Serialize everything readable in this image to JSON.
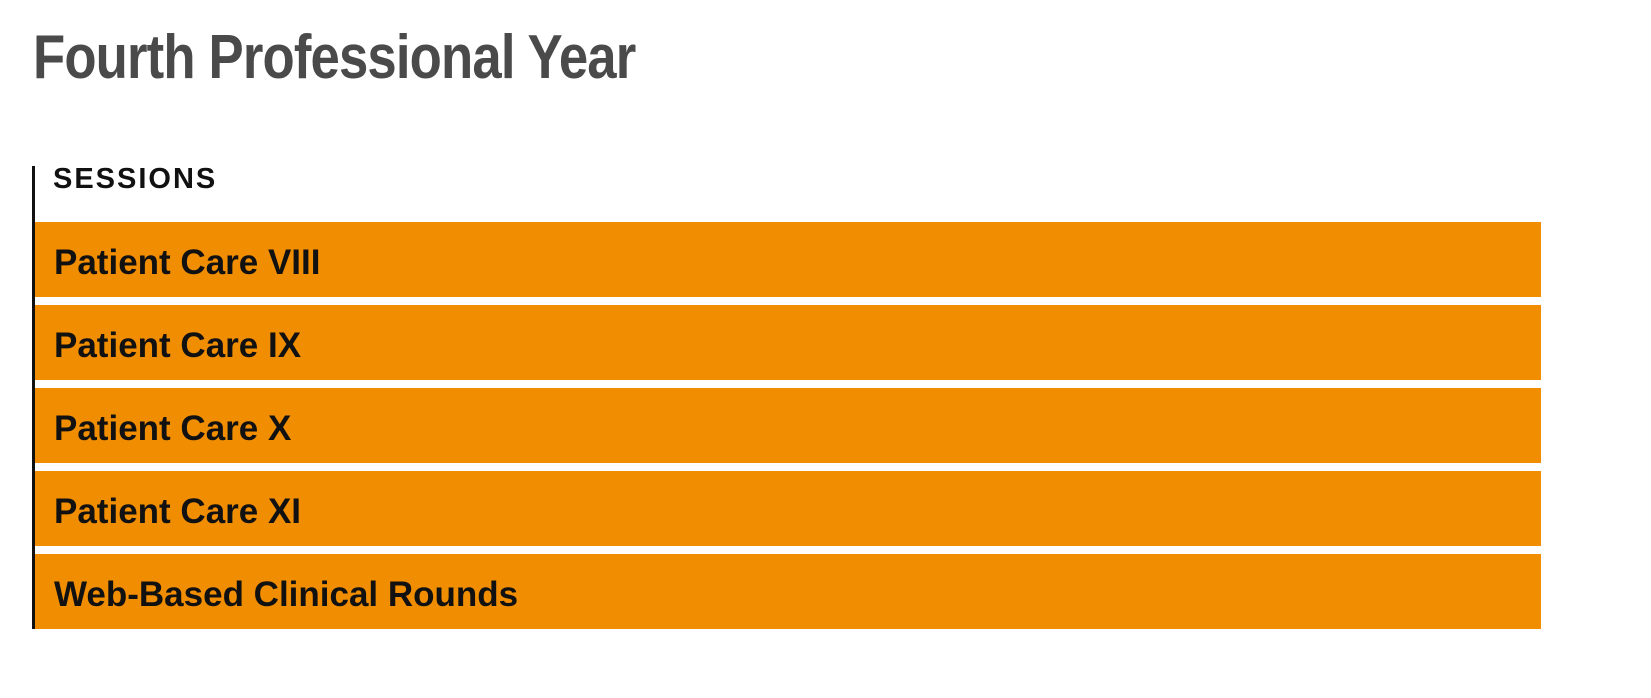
{
  "header": {
    "title": "Fourth Professional Year"
  },
  "section": {
    "label": "SESSIONS",
    "items": [
      "Patient Care VIII",
      "Patient Care IX",
      "Patient Care X",
      "Patient Care XI",
      "Web-Based Clinical Rounds"
    ]
  }
}
